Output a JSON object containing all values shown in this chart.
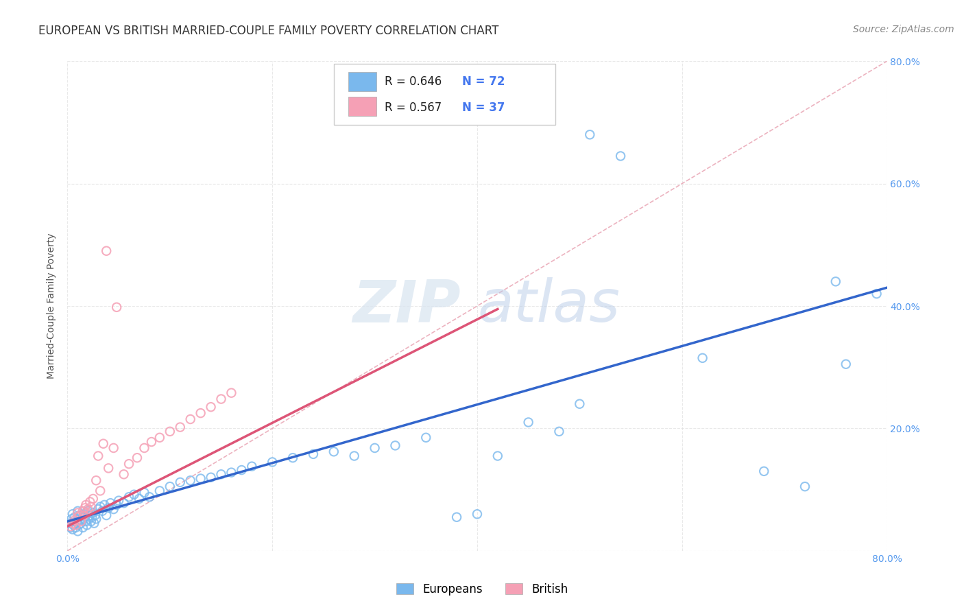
{
  "title": "EUROPEAN VS BRITISH MARRIED-COUPLE FAMILY POVERTY CORRELATION CHART",
  "source": "Source: ZipAtlas.com",
  "ylabel": "Married-Couple Family Poverty",
  "xlim": [
    0.0,
    0.8
  ],
  "ylim": [
    0.0,
    0.8
  ],
  "xticks": [
    0.0,
    0.2,
    0.4,
    0.6,
    0.8
  ],
  "yticks": [
    0.0,
    0.2,
    0.4,
    0.6,
    0.8
  ],
  "xticklabels": [
    "0.0%",
    "",
    "",
    "",
    "80.0%"
  ],
  "yticklabels_right": [
    "",
    "20.0%",
    "40.0%",
    "60.0%",
    "80.0%"
  ],
  "background_color": "#ffffff",
  "grid_color": "#e0e0e0",
  "watermark_zip": "ZIP",
  "watermark_atlas": "atlas",
  "watermark_zip_color": "#d8e4f0",
  "watermark_atlas_color": "#b8cce8",
  "european_color": "#7ab8ed",
  "british_color": "#f5a0b5",
  "european_line_color": "#3366cc",
  "british_line_color": "#dd5577",
  "diag_line_color": "#e8a0b0",
  "title_fontsize": 12,
  "axis_label_fontsize": 10,
  "tick_fontsize": 10,
  "legend_fontsize": 12,
  "source_fontsize": 10,
  "european_scatter": [
    [
      0.002,
      0.045
    ],
    [
      0.003,
      0.038
    ],
    [
      0.004,
      0.052
    ],
    [
      0.005,
      0.035
    ],
    [
      0.005,
      0.06
    ],
    [
      0.006,
      0.042
    ],
    [
      0.007,
      0.055
    ],
    [
      0.008,
      0.038
    ],
    [
      0.009,
      0.048
    ],
    [
      0.01,
      0.032
    ],
    [
      0.01,
      0.065
    ],
    [
      0.011,
      0.042
    ],
    [
      0.012,
      0.058
    ],
    [
      0.013,
      0.045
    ],
    [
      0.014,
      0.05
    ],
    [
      0.015,
      0.038
    ],
    [
      0.016,
      0.06
    ],
    [
      0.017,
      0.055
    ],
    [
      0.018,
      0.048
    ],
    [
      0.019,
      0.042
    ],
    [
      0.02,
      0.065
    ],
    [
      0.021,
      0.052
    ],
    [
      0.022,
      0.058
    ],
    [
      0.023,
      0.048
    ],
    [
      0.024,
      0.055
    ],
    [
      0.025,
      0.062
    ],
    [
      0.026,
      0.045
    ],
    [
      0.027,
      0.058
    ],
    [
      0.028,
      0.052
    ],
    [
      0.03,
      0.068
    ],
    [
      0.032,
      0.072
    ],
    [
      0.034,
      0.065
    ],
    [
      0.036,
      0.075
    ],
    [
      0.038,
      0.058
    ],
    [
      0.04,
      0.07
    ],
    [
      0.042,
      0.078
    ],
    [
      0.045,
      0.068
    ],
    [
      0.048,
      0.075
    ],
    [
      0.05,
      0.082
    ],
    [
      0.055,
      0.078
    ],
    [
      0.06,
      0.088
    ],
    [
      0.065,
      0.092
    ],
    [
      0.07,
      0.085
    ],
    [
      0.075,
      0.095
    ],
    [
      0.08,
      0.088
    ],
    [
      0.09,
      0.098
    ],
    [
      0.1,
      0.105
    ],
    [
      0.11,
      0.112
    ],
    [
      0.12,
      0.115
    ],
    [
      0.13,
      0.118
    ],
    [
      0.14,
      0.12
    ],
    [
      0.15,
      0.125
    ],
    [
      0.16,
      0.128
    ],
    [
      0.17,
      0.132
    ],
    [
      0.18,
      0.138
    ],
    [
      0.2,
      0.145
    ],
    [
      0.22,
      0.152
    ],
    [
      0.24,
      0.158
    ],
    [
      0.26,
      0.162
    ],
    [
      0.28,
      0.155
    ],
    [
      0.3,
      0.168
    ],
    [
      0.32,
      0.172
    ],
    [
      0.35,
      0.185
    ],
    [
      0.38,
      0.055
    ],
    [
      0.4,
      0.06
    ],
    [
      0.42,
      0.155
    ],
    [
      0.45,
      0.21
    ],
    [
      0.48,
      0.195
    ],
    [
      0.5,
      0.24
    ],
    [
      0.51,
      0.68
    ],
    [
      0.54,
      0.645
    ],
    [
      0.62,
      0.315
    ],
    [
      0.68,
      0.13
    ],
    [
      0.72,
      0.105
    ],
    [
      0.75,
      0.44
    ],
    [
      0.76,
      0.305
    ],
    [
      0.79,
      0.42
    ]
  ],
  "british_scatter": [
    [
      0.003,
      0.04
    ],
    [
      0.005,
      0.045
    ],
    [
      0.007,
      0.05
    ],
    [
      0.008,
      0.042
    ],
    [
      0.01,
      0.055
    ],
    [
      0.01,
      0.062
    ],
    [
      0.012,
      0.058
    ],
    [
      0.013,
      0.048
    ],
    [
      0.015,
      0.065
    ],
    [
      0.016,
      0.058
    ],
    [
      0.017,
      0.07
    ],
    [
      0.018,
      0.075
    ],
    [
      0.02,
      0.068
    ],
    [
      0.022,
      0.08
    ],
    [
      0.023,
      0.072
    ],
    [
      0.025,
      0.085
    ],
    [
      0.028,
      0.115
    ],
    [
      0.03,
      0.155
    ],
    [
      0.032,
      0.098
    ],
    [
      0.035,
      0.175
    ],
    [
      0.038,
      0.49
    ],
    [
      0.04,
      0.135
    ],
    [
      0.045,
      0.168
    ],
    [
      0.048,
      0.398
    ],
    [
      0.055,
      0.125
    ],
    [
      0.06,
      0.142
    ],
    [
      0.068,
      0.152
    ],
    [
      0.075,
      0.168
    ],
    [
      0.082,
      0.178
    ],
    [
      0.09,
      0.185
    ],
    [
      0.1,
      0.195
    ],
    [
      0.11,
      0.202
    ],
    [
      0.12,
      0.215
    ],
    [
      0.13,
      0.225
    ],
    [
      0.14,
      0.235
    ],
    [
      0.15,
      0.248
    ],
    [
      0.16,
      0.258
    ]
  ],
  "eu_line_x": [
    0.0,
    0.8
  ],
  "eu_line_y": [
    0.048,
    0.43
  ],
  "br_line_x": [
    0.0,
    0.42
  ],
  "br_line_y": [
    0.04,
    0.395
  ]
}
